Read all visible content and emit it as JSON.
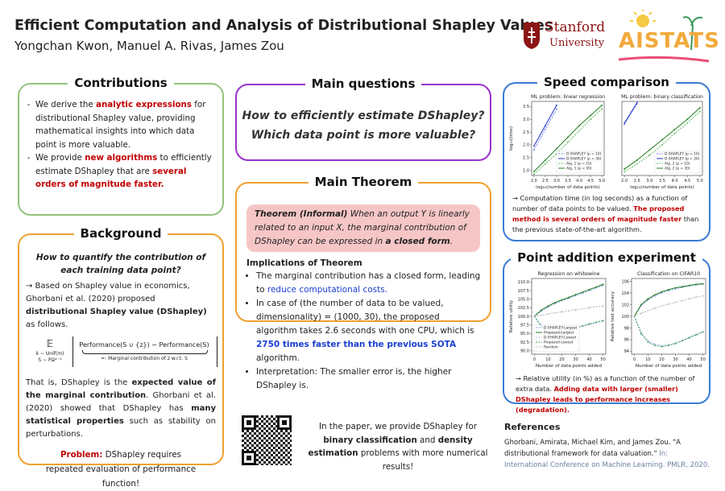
{
  "header": {
    "title": "Efficient Computation and Analysis of Distributional Shapley Values",
    "authors": "Yongchan Kwon, Manuel A. Rivas, James Zou",
    "logos": {
      "stanford": [
        "Stanford",
        "University"
      ],
      "aistats": "AISTATS"
    }
  },
  "contributions": {
    "heading": "Contributions",
    "bullets": [
      [
        "We derive the ",
        {
          "text": "analytic expressions",
          "color": "#c00000",
          "weight": "bold"
        },
        " for distributional Shapley value, providing mathematical insights into which data point is more valuable."
      ],
      [
        "We provide ",
        {
          "text": "new algorithms",
          "color": "#c00000",
          "weight": "bold"
        },
        " to efficiently estimate DShapley that are ",
        {
          "text": "several orders of magnitude faster.",
          "color": "#c00000",
          "weight": "bold"
        }
      ]
    ]
  },
  "background": {
    "heading": "Background",
    "question": "How to quantify the contribution of each training data point?",
    "paragraph1": [
      "→ Based on Shapley value in economics, Ghorbani et al. (2020) proposed ",
      {
        "text": "distributional Shapley value (DShapley)",
        "weight": "bold"
      },
      " as follows."
    ],
    "formula": {
      "expectation": "𝔼",
      "subscripts": [
        "k ∼ Unif(m)",
        "S ∼ P𝒟ᵏ⁻¹"
      ],
      "numerator": "Performance(S ∪ {z}) − Performance(S)",
      "underbrace": "=: Marginal contribution of z w.r.t. S"
    },
    "paragraph2": [
      "That is, DShapley is the ",
      {
        "text": "expected value of the marginal contribution",
        "weight": "bold"
      },
      ". Ghorbani et al. (2020) showed that DShapley has ",
      {
        "text": "many statistical properties",
        "weight": "bold"
      },
      " such as stability on perturbations."
    ],
    "problem": [
      {
        "text": "Problem:",
        "color": "#c00000",
        "weight": "bold"
      },
      " DShapley requires repeated evaluation of performance function!"
    ]
  },
  "main_questions": {
    "heading": "Main questions",
    "lines": [
      "How to efficiently estimate DShapley?",
      "Which data point is more valuable?"
    ]
  },
  "main_theorem": {
    "heading": "Main Theorem",
    "theorem": [
      {
        "text": "Theorem (Informal)",
        "weight": "bold"
      },
      " When an output Y is linearly related to an input X, the marginal contribution of DShapley can be expressed in ",
      {
        "text": "a closed form",
        "weight": "bold"
      },
      "."
    ],
    "implications_heading": "Implications of Theorem",
    "bullets": [
      [
        "The marginal contribution has a closed form, leading to ",
        {
          "text": "reduce computational costs.",
          "color": "#1a3fd0"
        }
      ],
      [
        "In case of (the number of data to be valued, dimensionality) = (1000, 30), the proposed algorithm takes 2.6 seconds with one CPU, which is ",
        {
          "text": "2750 times faster than the previous SOTA",
          "color": "#1a3fd0",
          "weight": "bold"
        },
        " algorithm."
      ],
      [
        "Interpretation: The smaller error is, the higher DShapley is."
      ]
    ]
  },
  "speed_comparison": {
    "heading": "Speed comparison",
    "charts": [
      {
        "type": "line",
        "title": "ML problem: linear regression",
        "x_label": "log₁₀(number of data points)",
        "y_label": "log₁₀(time)",
        "x": [
          2.0,
          2.5,
          3.0,
          3.5,
          4.0,
          4.5,
          5.0
        ],
        "xlim": [
          1.9,
          5.1
        ],
        "xticks": [
          {
            "value": 2,
            "label": "2.0"
          },
          2.5,
          {
            "value": 3,
            "label": "3.0"
          },
          3.5,
          {
            "value": 4,
            "label": "4.0"
          },
          4.5,
          {
            "value": 5,
            "label": "5.0"
          }
        ],
        "ylim": [
          0.8,
          3.7
        ],
        "yticks": [
          {
            "value": 1,
            "label": "1.0"
          },
          1.5,
          {
            "value": 2,
            "label": "2.0"
          },
          2.5,
          {
            "value": 3,
            "label": "3.0"
          },
          3.5
        ],
        "legend": "lower right",
        "series": [
          {
            "name": "D-SHAPLEY (p = 10)",
            "color": "#6b7fe0",
            "linestyle": "dashed",
            "values": [
              1.8,
              2.6,
              3.4,
              null,
              null,
              null,
              null
            ]
          },
          {
            "name": "D-SHAPLEY (p = 30)",
            "color": "#2233cc",
            "linestyle": "solid",
            "values": [
              1.95,
              2.75,
              3.55,
              null,
              null,
              null,
              null
            ]
          },
          {
            "name": "Alg. 1 (p = 10)",
            "color": "#5cb85c",
            "linestyle": "dashed",
            "values": [
              0.85,
              1.25,
              1.65,
              2.1,
              2.55,
              3.0,
              3.4
            ]
          },
          {
            "name": "Alg. 1 (p = 30)",
            "color": "#1e7d1e",
            "linestyle": "solid",
            "values": [
              0.95,
              1.4,
              1.85,
              2.3,
              2.75,
              3.15,
              3.55
            ]
          }
        ]
      },
      {
        "type": "line",
        "title": "ML problem: binary classification",
        "x_label": "log₁₀(number of data points)",
        "x": [
          2.0,
          2.5,
          3.0,
          3.5,
          4.0,
          4.5,
          5.0
        ],
        "xlim": [
          1.9,
          5.1
        ],
        "xticks": [
          {
            "value": 2,
            "label": "2.0"
          },
          2.5,
          {
            "value": 3,
            "label": "3.0"
          },
          3.5,
          {
            "value": 4,
            "label": "4.0"
          },
          4.5,
          {
            "value": 5,
            "label": "5.0"
          }
        ],
        "ylim": [
          0.8,
          3.7
        ],
        "legend": "lower right",
        "series": [
          {
            "name": "D-SHAPLEY (p = 10)",
            "color": "#6b7fe0",
            "linestyle": "dashed",
            "values": [
              2.8,
              3.6,
              null,
              null,
              null,
              null,
              null
            ]
          },
          {
            "name": "D-SHAPLEY (p = 30)",
            "color": "#2233cc",
            "linestyle": "solid",
            "values": [
              2.85,
              3.65,
              null,
              null,
              null,
              null,
              null
            ]
          },
          {
            "name": "Alg. 2 (p = 10)",
            "color": "#5cb85c",
            "linestyle": "dashed",
            "values": [
              0.95,
              1.25,
              1.6,
              2.0,
              2.45,
              2.85,
              3.3
            ]
          },
          {
            "name": "Alg. 2 (p = 30)",
            "color": "#1e7d1e",
            "linestyle": "solid",
            "values": [
              1.05,
              1.4,
              1.8,
              2.2,
              2.6,
              3.0,
              3.45
            ]
          }
        ]
      }
    ],
    "caption": [
      "→ Computation time (in log seconds) as a function of number of data points to be valued. ",
      {
        "text": "The proposed method is several orders of magnitude faster",
        "color": "#c00000",
        "weight": "bold"
      },
      " than the previous state-of-the-art algorithm."
    ]
  },
  "point_addition": {
    "heading": "Point addition experiment",
    "charts": [
      {
        "type": "line",
        "title": "Regression on whitewine",
        "x_label": "Number of data points added",
        "y_label": "Relative utility",
        "x": [
          0,
          5,
          10,
          15,
          20,
          25,
          30,
          35,
          40,
          45,
          50
        ],
        "xlim": [
          -2,
          52
        ],
        "xticks": [
          0,
          10,
          20,
          30,
          40,
          50
        ],
        "ylim": [
          89,
          111
        ],
        "yticks": [
          {
            "value": 90,
            "label": "90.0"
          },
          92.5,
          {
            "value": 95,
            "label": "95.0"
          },
          97.5,
          {
            "value": 100,
            "label": "100.0"
          },
          102.5,
          {
            "value": 105,
            "label": "105.0"
          },
          107.5,
          {
            "value": 110,
            "label": "110.0"
          }
        ],
        "legend": "lower left",
        "series": [
          {
            "name": "D-SHAPLEY-Largest",
            "color": "#8899ee",
            "linestyle": "dashed",
            "values": [
              100,
              101.5,
              102.7,
              103.7,
              104.5,
              105.2,
              106,
              106.7,
              107.5,
              108.2,
              109
            ]
          },
          {
            "name": "Proposed-Largest",
            "color": "#1e7d1e",
            "linestyle": "solid",
            "values": [
              100,
              101.8,
              103,
              104,
              104.8,
              105.5,
              106.3,
              107,
              107.8,
              108.5,
              109.3
            ]
          },
          {
            "name": "D-SHAPLEY-Lowest",
            "color": "#aab8ee",
            "linestyle": "dashed",
            "values": [
              100,
              97.5,
              96,
              95.5,
              95.6,
              96,
              96.6,
              97.2,
              97.6,
              98.1,
              98.5
            ]
          },
          {
            "name": "Proposed-Lowest",
            "color": "#3a9a5a",
            "linestyle": "dashed",
            "values": [
              100,
              97,
              95.5,
              95,
              95.3,
              95.8,
              96.5,
              97.2,
              97.8,
              98.3,
              98.8
            ]
          },
          {
            "name": "Random",
            "color": "#bbbbbb",
            "linestyle": "dashed",
            "values": [
              100,
              100.3,
              100.7,
              101,
              101.3,
              101.6,
              101.9,
              102.2,
              102.5,
              102.8,
              103
            ]
          }
        ]
      },
      {
        "type": "line",
        "title": "Classification on CIFAR10",
        "x_label": "Number of data points added",
        "y_label": "Relative test accuracy",
        "x": [
          0,
          5,
          10,
          15,
          20,
          25,
          30,
          35,
          40,
          45,
          50
        ],
        "xlim": [
          -2,
          52
        ],
        "xticks": [
          0,
          10,
          20,
          30,
          40,
          50
        ],
        "ylim": [
          93.5,
          106.5
        ],
        "yticks": [
          94,
          96,
          98,
          100,
          102,
          104,
          106
        ],
        "series": [
          {
            "color": "#8899ee",
            "linestyle": "dashed",
            "values": [
              100,
              101.8,
              102.8,
              103.5,
              104,
              104.4,
              104.7,
              105,
              105.2,
              105.4,
              105.5
            ]
          },
          {
            "color": "#1e7d1e",
            "linestyle": "solid",
            "values": [
              100,
              102,
              103,
              103.7,
              104.2,
              104.6,
              104.9,
              105.1,
              105.3,
              105.5,
              105.6
            ]
          },
          {
            "color": "#aab8ee",
            "linestyle": "dashed",
            "values": [
              100,
              97.3,
              95.8,
              95.2,
              95,
              95.1,
              95.5,
              95.9,
              96.4,
              96.9,
              97.4
            ]
          },
          {
            "color": "#3a9a5a",
            "linestyle": "dashed",
            "values": [
              100,
              97,
              95.6,
              95,
              94.8,
              95,
              95.3,
              95.8,
              96.3,
              96.8,
              97.3
            ]
          },
          {
            "color": "#bbbbbb",
            "linestyle": "dashed",
            "values": [
              100,
              100.5,
              101,
              101.4,
              101.8,
              102.1,
              102.4,
              102.7,
              103,
              103.3,
              103.5
            ]
          }
        ]
      }
    ],
    "caption": [
      "→ Relative utility (in %) as a function of the number of extra data. ",
      {
        "text": "Adding data with larger (smaller) DShapley leads to performance increases (degradation).",
        "color": "#c00000",
        "weight": "bold"
      }
    ]
  },
  "paper_note": [
    "In the paper, we provide DShapley for ",
    {
      "text": "binary classification",
      "weight": "bold"
    },
    " and ",
    {
      "text": "density estimation",
      "weight": "bold"
    },
    " problems with more numerical results!"
  ],
  "references": {
    "heading": "References",
    "entries": [
      [
        "Ghorbani, Amirata, Michael Kim, and James Zou. \"A distributional framework for data valuation.\" ",
        {
          "text": "In: International Conference on Machine Learning. PMLR, 2020.",
          "color": "#6a7fa0"
        }
      ]
    ]
  }
}
